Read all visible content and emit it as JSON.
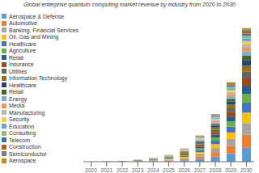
{
  "chart_data": {
    "type": "bar",
    "title": "Global enterprise quantum computing market revenue by industry from 2020 to 2030",
    "categories": [
      "2020",
      "2021",
      "2022",
      "2023",
      "2024",
      "2025",
      "2026",
      "2027",
      "2028",
      "2029",
      "2030"
    ],
    "stacked": true,
    "grid": false,
    "legend": "left",
    "tick_labels": "x",
    "ylim": [
      0,
      14
    ],
    "series": [
      {
        "name": "Aerospace & Defense",
        "color": "#5b9bd5",
        "values": [
          0.002,
          0.004,
          0.009,
          0.02,
          0.035,
          0.065,
          0.13,
          0.26,
          0.48,
          0.8,
          1.35
        ]
      },
      {
        "name": "Automotive",
        "color": "#ed7d31",
        "values": [
          0.002,
          0.004,
          0.008,
          0.018,
          0.032,
          0.058,
          0.115,
          0.23,
          0.42,
          0.7,
          1.18
        ]
      },
      {
        "name": "Banking, Financial Services",
        "color": "#a5a5a5",
        "values": [
          0.002,
          0.004,
          0.008,
          0.016,
          0.03,
          0.055,
          0.108,
          0.215,
          0.39,
          0.65,
          1.1
        ]
      },
      {
        "name": "Oil, Gas and Mining",
        "color": "#ffc000",
        "values": [
          0.002,
          0.003,
          0.007,
          0.015,
          0.027,
          0.05,
          0.098,
          0.196,
          0.36,
          0.6,
          1.0
        ]
      },
      {
        "name": "Healthcare",
        "color": "#4472c4",
        "values": [
          0.002,
          0.003,
          0.007,
          0.014,
          0.025,
          0.046,
          0.09,
          0.18,
          0.33,
          0.55,
          0.92
        ]
      },
      {
        "name": "Agriculture",
        "color": "#70ad47",
        "values": [
          0.001,
          0.003,
          0.006,
          0.013,
          0.023,
          0.042,
          0.083,
          0.166,
          0.3,
          0.5,
          0.84
        ]
      },
      {
        "name": "Retail",
        "color": "#255e91",
        "values": [
          0.001,
          0.003,
          0.006,
          0.012,
          0.021,
          0.038,
          0.075,
          0.15,
          0.27,
          0.45,
          0.76
        ]
      },
      {
        "name": "Insurance",
        "color": "#9e480e",
        "values": [
          0.001,
          0.002,
          0.005,
          0.011,
          0.019,
          0.034,
          0.068,
          0.135,
          0.245,
          0.408,
          0.69
        ]
      },
      {
        "name": "Utilities",
        "color": "#636363",
        "values": [
          0.001,
          0.002,
          0.005,
          0.01,
          0.017,
          0.031,
          0.061,
          0.121,
          0.22,
          0.367,
          0.62
        ]
      },
      {
        "name": "Information Technology",
        "color": "#997300",
        "values": [
          0.001,
          0.002,
          0.004,
          0.009,
          0.016,
          0.028,
          0.055,
          0.109,
          0.198,
          0.33,
          0.56
        ]
      },
      {
        "name": "Healthcare",
        "color": "#264478",
        "values": [
          0.001,
          0.002,
          0.004,
          0.008,
          0.014,
          0.025,
          0.05,
          0.098,
          0.178,
          0.297,
          0.5
        ]
      },
      {
        "name": "Retail",
        "color": "#43682b",
        "values": [
          0.001,
          0.002,
          0.004,
          0.008,
          0.013,
          0.023,
          0.045,
          0.089,
          0.16,
          0.267,
          0.45
        ]
      },
      {
        "name": "Energy",
        "color": "#7cafdd",
        "values": [
          0.001,
          0.002,
          0.003,
          0.007,
          0.012,
          0.021,
          0.04,
          0.08,
          0.144,
          0.24,
          0.4
        ]
      },
      {
        "name": "Media",
        "color": "#f1975a",
        "values": [
          0.001,
          0.001,
          0.003,
          0.006,
          0.011,
          0.019,
          0.036,
          0.072,
          0.13,
          0.216,
          0.36
        ]
      },
      {
        "name": "Manufacturing",
        "color": "#b7b7b7",
        "values": [
          0.001,
          0.001,
          0.003,
          0.006,
          0.01,
          0.017,
          0.032,
          0.065,
          0.117,
          0.195,
          0.33
        ]
      },
      {
        "name": "Security",
        "color": "#ffcd33",
        "values": [
          0.001,
          0.001,
          0.002,
          0.005,
          0.009,
          0.015,
          0.029,
          0.058,
          0.105,
          0.175,
          0.29
        ]
      },
      {
        "name": "Education",
        "color": "#6aa0d9",
        "values": [
          0.001,
          0.001,
          0.002,
          0.005,
          0.008,
          0.014,
          0.026,
          0.052,
          0.095,
          0.158,
          0.26
        ]
      },
      {
        "name": "Consulting",
        "color": "#8dc268",
        "values": [
          0.001,
          0.001,
          0.002,
          0.004,
          0.007,
          0.013,
          0.023,
          0.047,
          0.085,
          0.142,
          0.24
        ]
      },
      {
        "name": "Telecom",
        "color": "#2e75b6",
        "values": [
          0.001,
          0.001,
          0.002,
          0.004,
          0.007,
          0.011,
          0.021,
          0.042,
          0.076,
          0.128,
          0.21
        ]
      },
      {
        "name": "Construction",
        "color": "#c45911",
        "values": [
          0.001,
          0.001,
          0.002,
          0.004,
          0.006,
          0.01,
          0.019,
          0.038,
          0.068,
          0.115,
          0.19
        ]
      },
      {
        "name": "Semiconductor",
        "color": "#7b7b7b",
        "values": [
          0.001,
          0.001,
          0.001,
          0.003,
          0.005,
          0.009,
          0.017,
          0.034,
          0.061,
          0.103,
          0.17
        ]
      },
      {
        "name": "Aerospace",
        "color": "#bf9000",
        "values": [
          0.001,
          0.001,
          0.001,
          0.003,
          0.005,
          0.008,
          0.015,
          0.031,
          0.055,
          0.093,
          0.15
        ]
      }
    ]
  }
}
